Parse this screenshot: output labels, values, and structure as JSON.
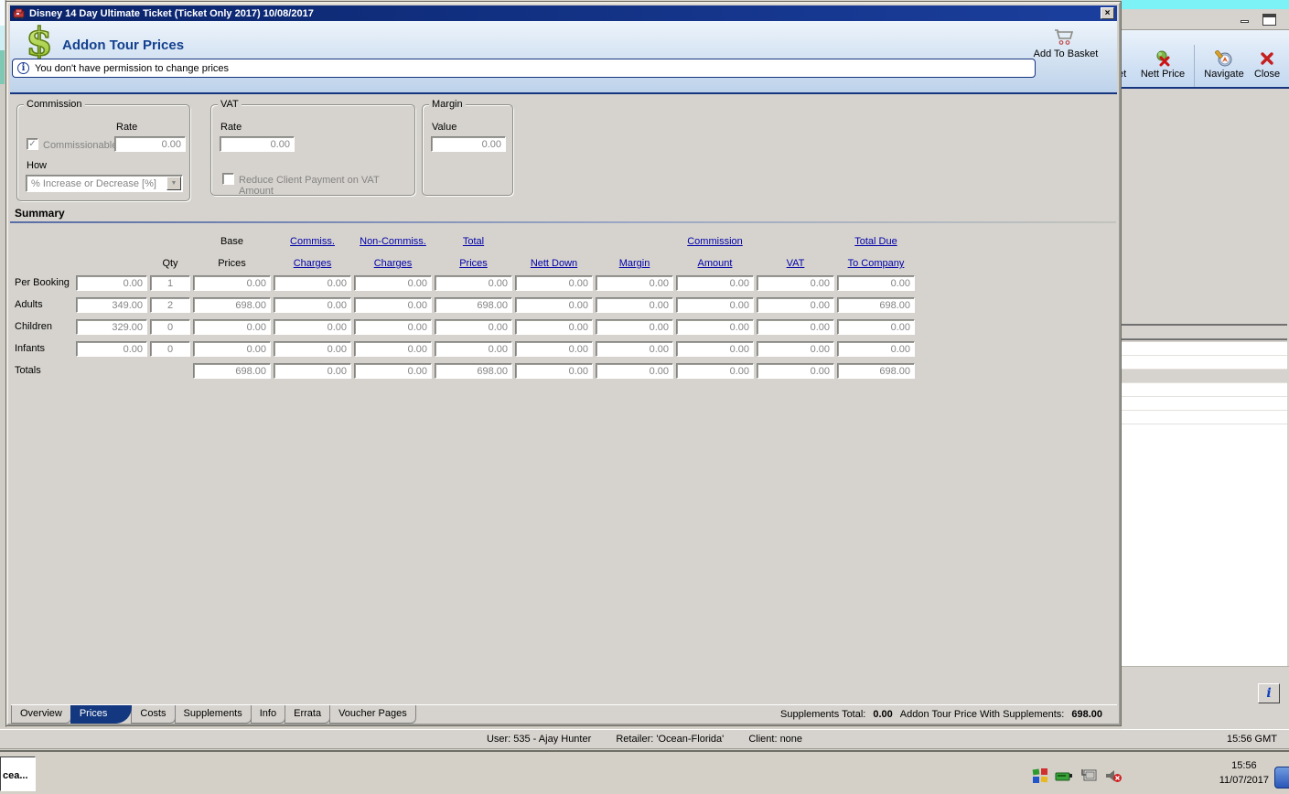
{
  "colors": {
    "titlebar_navy": "#0A246A",
    "accent_navy": "#16357F",
    "link_blue": "#0000A8",
    "window_grey": "#D6D3CE",
    "disabled_text": "#848484",
    "selected_tab": "#14387F"
  },
  "dialog": {
    "title": "Disney 14 Day Ultimate Ticket (Ticket Only 2017) 10/08/2017",
    "close_glyph": "×",
    "heading": "Addon Tour Prices",
    "info_message": "You don't have permission to change prices",
    "info_glyph": "i",
    "add_to_basket_label": "Add To Basket",
    "commission": {
      "legend": "Commission",
      "rate_label": "Rate",
      "commissionable_label": "Commissionable",
      "commissionable_checked": "✓",
      "rate_value": "0.00",
      "how_label": "How",
      "how_value": "% Increase or Decrease  [%]",
      "dropdown_arrow": "▼"
    },
    "vat": {
      "legend": "VAT",
      "rate_label": "Rate",
      "rate_value": "0.00",
      "reduce_label": "Reduce Client Payment on VAT Amount"
    },
    "margin": {
      "legend": "Margin",
      "value_label": "Value",
      "value": "0.00"
    }
  },
  "summary": {
    "title": "Summary",
    "columns": [
      {
        "top": "",
        "bottom": "Qty",
        "link": false
      },
      {
        "top": "Base",
        "bottom": "Prices",
        "link": false
      },
      {
        "top": "Commiss.",
        "bottom": "Charges",
        "link": true
      },
      {
        "top": "Non-Commiss.",
        "bottom": "Charges",
        "link": true
      },
      {
        "top": "Total",
        "bottom": "Prices",
        "link": true
      },
      {
        "top": "",
        "bottom": "Nett Down",
        "link": true
      },
      {
        "top": "",
        "bottom": "Margin",
        "link": true
      },
      {
        "top": "Commission",
        "bottom": "Amount",
        "link": true
      },
      {
        "top": "",
        "bottom": "VAT",
        "link": true
      },
      {
        "top": "Total Due",
        "bottom": "To Company",
        "link": true
      }
    ],
    "rows": [
      {
        "label": "Per Booking",
        "price": "0.00",
        "qty": "1",
        "values": [
          "0.00",
          "0.00",
          "0.00",
          "0.00",
          "0.00",
          "0.00",
          "0.00",
          "0.00",
          "0.00"
        ]
      },
      {
        "label": "Adults",
        "price": "349.00",
        "qty": "2",
        "values": [
          "698.00",
          "0.00",
          "0.00",
          "698.00",
          "0.00",
          "0.00",
          "0.00",
          "0.00",
          "698.00"
        ]
      },
      {
        "label": "Children",
        "price": "329.00",
        "qty": "0",
        "values": [
          "0.00",
          "0.00",
          "0.00",
          "0.00",
          "0.00",
          "0.00",
          "0.00",
          "0.00",
          "0.00"
        ]
      },
      {
        "label": "Infants",
        "price": "0.00",
        "qty": "0",
        "values": [
          "0.00",
          "0.00",
          "0.00",
          "0.00",
          "0.00",
          "0.00",
          "0.00",
          "0.00",
          "0.00"
        ]
      },
      {
        "label": "Totals",
        "price": null,
        "qty": null,
        "values": [
          "698.00",
          "0.00",
          "0.00",
          "698.00",
          "0.00",
          "0.00",
          "0.00",
          "0.00",
          "698.00"
        ]
      }
    ]
  },
  "tabs": {
    "items": [
      "Overview",
      "Prices",
      "Costs",
      "Supplements",
      "Info",
      "Errata",
      "Voucher Pages"
    ],
    "active": "Prices"
  },
  "footer": {
    "supplements_total_label": "Supplements Total:",
    "supplements_total_value": "0.00",
    "addon_price_label": "Addon Tour Price With Supplements:",
    "addon_price_value": "698.00"
  },
  "background_window": {
    "toolbar": {
      "basket_partial_label": "et",
      "nett_price_label": "Nett Price",
      "navigate_label": "Navigate",
      "close_label": "Close"
    },
    "info_button_label": "i"
  },
  "status_bar": {
    "user": "User: 535 - Ajay Hunter",
    "retailer": "Retailer: 'Ocean-Florida'",
    "client": "Client: none",
    "time": "15:56 GMT"
  },
  "taskbar": {
    "task_button_label": "cea...",
    "clock_time": "15:56",
    "clock_date": "11/07/2017"
  }
}
